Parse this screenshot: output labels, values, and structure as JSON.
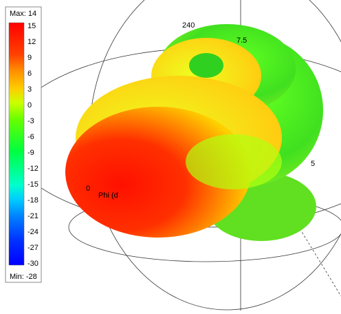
{
  "colorbar": {
    "max_label": "Max: 14",
    "min_label": "Min: -28",
    "ticks": [
      "15",
      "12",
      "9",
      "6",
      "3",
      "0",
      "-3",
      "-6",
      "-9",
      "-12",
      "-15",
      "-18",
      "-21",
      "-24",
      "-27",
      "-30"
    ]
  },
  "plot": {
    "labels": [
      "240",
      "7.5",
      "5",
      "0",
      "Phi (d"
    ]
  }
}
